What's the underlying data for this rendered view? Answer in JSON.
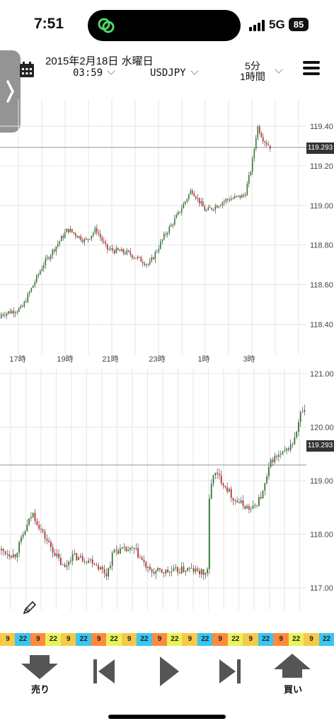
{
  "status_bar": {
    "time": "7:51",
    "network": "5G",
    "battery": "85"
  },
  "header": {
    "date": "2015年2月18日 水曜日",
    "time_select": "03:59",
    "pair_select": "USDJPY",
    "timeframe_line1": "5分",
    "timeframe_line2": "1時間"
  },
  "chart_top": {
    "price_labels": [
      "119.40",
      "119.20",
      "119.00",
      "118.80",
      "118.60",
      "118.40"
    ],
    "time_labels": [
      "17時",
      "19時",
      "21時",
      "23時",
      "1時",
      "3時"
    ],
    "current_price": "119.293"
  },
  "chart_bottom": {
    "price_labels": [
      "121.00",
      "120.00",
      "119.00",
      "118.00",
      "117.00"
    ],
    "current_price": "119.293"
  },
  "strip": {
    "cells": [
      "9",
      "22",
      "9",
      "22",
      "9",
      "22",
      "9",
      "22",
      "9",
      "22",
      "9",
      "22",
      "9",
      "22",
      "9",
      "22",
      "9",
      "22",
      "9",
      "22",
      "9",
      "22"
    ],
    "colors": [
      "#f7c948",
      "#39c6f0",
      "#ff8a3d",
      "#eaf25a"
    ]
  },
  "toolbar": {
    "sell_label": "売り",
    "buy_label": "買い"
  },
  "colors": {
    "bull": "#2e7d32",
    "bear": "#c62828",
    "grid": "#e6e6e6"
  }
}
